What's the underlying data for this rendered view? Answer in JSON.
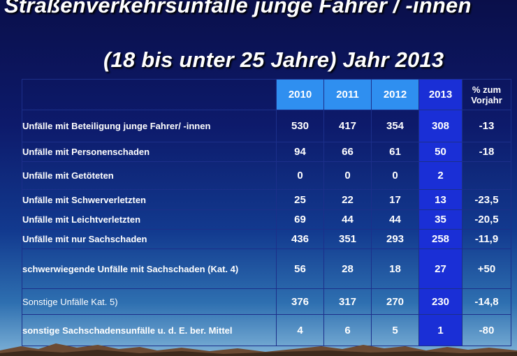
{
  "title": {
    "line1": "Straßenverkehrsunfälle junge Fahrer / -innen",
    "line2": "(18 bis unter 25 Jahre) Jahr 2013"
  },
  "table": {
    "years": [
      "2010",
      "2011",
      "2012",
      "2013"
    ],
    "change_header": "% zum Vorjahr",
    "rows": [
      {
        "label": "Unfälle mit Beteiligung junge Fahrer/ -innen",
        "values": [
          "530",
          "417",
          "354",
          "308"
        ],
        "change": "-13"
      },
      {
        "label": "Unfälle mit Personenschaden",
        "values": [
          "94",
          "66",
          "61",
          "50"
        ],
        "change": "-18"
      },
      {
        "label": "Unfälle mit Getöteten",
        "values": [
          "0",
          "0",
          "0",
          "2"
        ],
        "change": ""
      },
      {
        "label": "Unfälle mit Schwerverletzten",
        "values": [
          "25",
          "22",
          "17",
          "13"
        ],
        "change": "-23,5"
      },
      {
        "label": "Unfälle mit Leichtverletzten",
        "values": [
          "69",
          "44",
          "44",
          "35"
        ],
        "change": "-20,5"
      },
      {
        "label": "Unfälle mit nur Sachschaden",
        "values": [
          "436",
          "351",
          "293",
          "258"
        ],
        "change": "-11,9"
      },
      {
        "label": "schwerwiegende Unfälle mit Sachschaden (Kat. 4)",
        "values": [
          "56",
          "28",
          "18",
          "27"
        ],
        "change": "+50"
      },
      {
        "label": "Sonstige Unfälle Kat. 5)",
        "values": [
          "376",
          "317",
          "270",
          "230"
        ],
        "change": "-14,8"
      },
      {
        "label": "sonstige Sachschadensunfälle u. d. E. ber. Mittel",
        "values": [
          "4",
          "6",
          "5",
          "1"
        ],
        "change": "-80"
      }
    ]
  },
  "colors": {
    "background_top": "#0a0f4a",
    "background_bottom": "#7fb3d8",
    "year_header": "#2f8ff0",
    "current_year_column": "#1a2fd6",
    "text": "#ffffff"
  }
}
